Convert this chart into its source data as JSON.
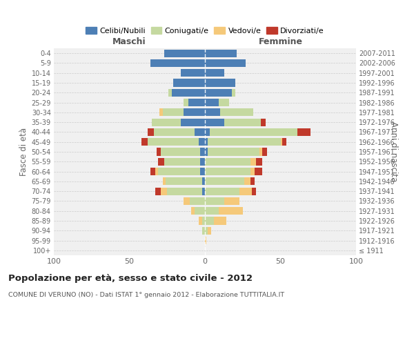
{
  "age_groups": [
    "100+",
    "95-99",
    "90-94",
    "85-89",
    "80-84",
    "75-79",
    "70-74",
    "65-69",
    "60-64",
    "55-59",
    "50-54",
    "45-49",
    "40-44",
    "35-39",
    "30-34",
    "25-29",
    "20-24",
    "15-19",
    "10-14",
    "5-9",
    "0-4"
  ],
  "birth_years": [
    "≤ 1911",
    "1912-1916",
    "1917-1921",
    "1922-1926",
    "1927-1931",
    "1932-1936",
    "1937-1941",
    "1942-1946",
    "1947-1951",
    "1952-1956",
    "1957-1961",
    "1962-1966",
    "1967-1971",
    "1972-1976",
    "1977-1981",
    "1982-1986",
    "1987-1991",
    "1992-1996",
    "1997-2001",
    "2002-2006",
    "2007-2011"
  ],
  "male": {
    "celibi": [
      0,
      0,
      0,
      0,
      0,
      0,
      2,
      2,
      3,
      3,
      3,
      4,
      7,
      16,
      14,
      11,
      22,
      21,
      16,
      36,
      27
    ],
    "coniugati": [
      0,
      0,
      2,
      2,
      7,
      10,
      23,
      24,
      28,
      24,
      26,
      34,
      27,
      19,
      14,
      3,
      2,
      0,
      0,
      0,
      0
    ],
    "vedovi": [
      0,
      0,
      0,
      2,
      2,
      4,
      4,
      2,
      2,
      0,
      0,
      0,
      0,
      0,
      2,
      0,
      0,
      0,
      0,
      0,
      0
    ],
    "divorziati": [
      0,
      0,
      0,
      0,
      0,
      0,
      4,
      0,
      3,
      4,
      3,
      4,
      4,
      0,
      0,
      0,
      0,
      0,
      0,
      0,
      0
    ]
  },
  "female": {
    "nubili": [
      0,
      0,
      0,
      0,
      0,
      0,
      0,
      0,
      0,
      0,
      2,
      2,
      3,
      13,
      10,
      9,
      18,
      20,
      13,
      27,
      21
    ],
    "coniugate": [
      0,
      0,
      2,
      6,
      9,
      13,
      23,
      26,
      30,
      30,
      34,
      48,
      58,
      24,
      22,
      7,
      2,
      0,
      0,
      0,
      0
    ],
    "vedove": [
      0,
      1,
      2,
      8,
      16,
      10,
      8,
      4,
      3,
      4,
      2,
      1,
      0,
      0,
      0,
      0,
      0,
      0,
      0,
      0,
      0
    ],
    "divorziate": [
      0,
      0,
      0,
      0,
      0,
      0,
      3,
      3,
      5,
      4,
      3,
      3,
      9,
      3,
      0,
      0,
      0,
      0,
      0,
      0,
      0
    ]
  },
  "colors": {
    "celibi": "#4d7fb5",
    "coniugati": "#c5d9a0",
    "vedovi": "#f5c97a",
    "divorziati": "#c0392b"
  },
  "xlim": 100,
  "title": "Popolazione per età, sesso e stato civile - 2012",
  "subtitle": "COMUNE DI VERUNO (NO) - Dati ISTAT 1° gennaio 2012 - Elaborazione TUTTITALIA.IT",
  "xlabel_left": "Maschi",
  "xlabel_right": "Femmine",
  "ylabel_left": "Fasce di età",
  "ylabel_right": "Anni di nascita"
}
